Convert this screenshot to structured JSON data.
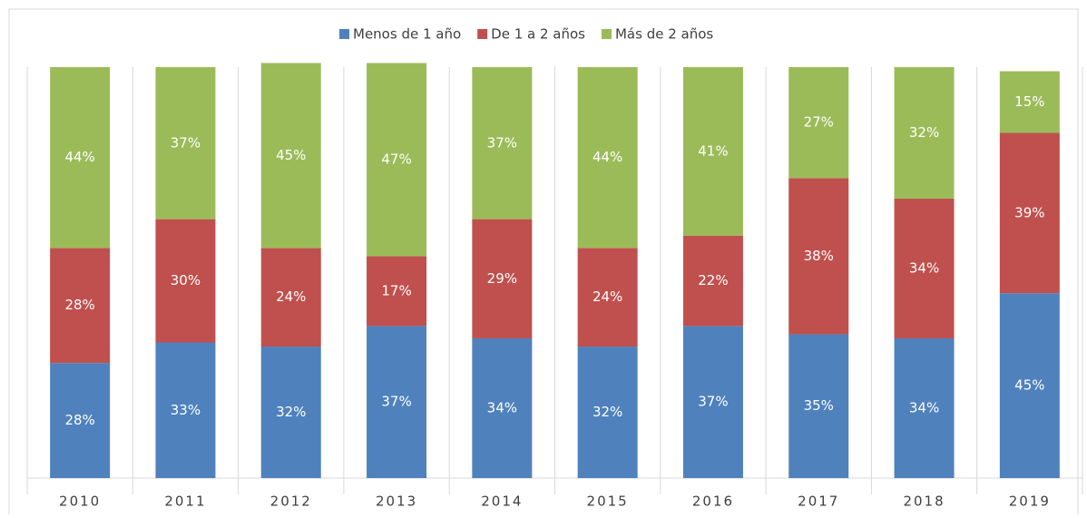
{
  "chart_data": {
    "type": "stacked_bar_percent",
    "categories": [
      "2010",
      "2011",
      "2012",
      "2013",
      "2014",
      "2015",
      "2016",
      "2017",
      "2018",
      "2019"
    ],
    "series": [
      {
        "name": "Menos de 1 año",
        "color": "#4f81bd",
        "values": [
          28,
          33,
          32,
          37,
          34,
          32,
          37,
          35,
          34,
          45
        ],
        "value_labels": [
          "28%",
          "33%",
          "32%",
          "37%",
          "34%",
          "32%",
          "37%",
          "35%",
          "34%",
          "45%"
        ]
      },
      {
        "name": "De 1 a 2 años",
        "color": "#c0504d",
        "values": [
          28,
          30,
          24,
          17,
          29,
          24,
          22,
          38,
          34,
          39
        ],
        "value_labels": [
          "28%",
          "30%",
          "24%",
          "17%",
          "29%",
          "24%",
          "22%",
          "38%",
          "34%",
          "39%"
        ]
      },
      {
        "name": "Más de 2 años",
        "color": "#9bbb59",
        "values": [
          44,
          37,
          45,
          47,
          37,
          44,
          41,
          27,
          32,
          15
        ],
        "value_labels": [
          "44%",
          "37%",
          "45%",
          "47%",
          "37%",
          "44%",
          "41%",
          "27%",
          "32%",
          "15%"
        ]
      }
    ],
    "legend": "top"
  }
}
